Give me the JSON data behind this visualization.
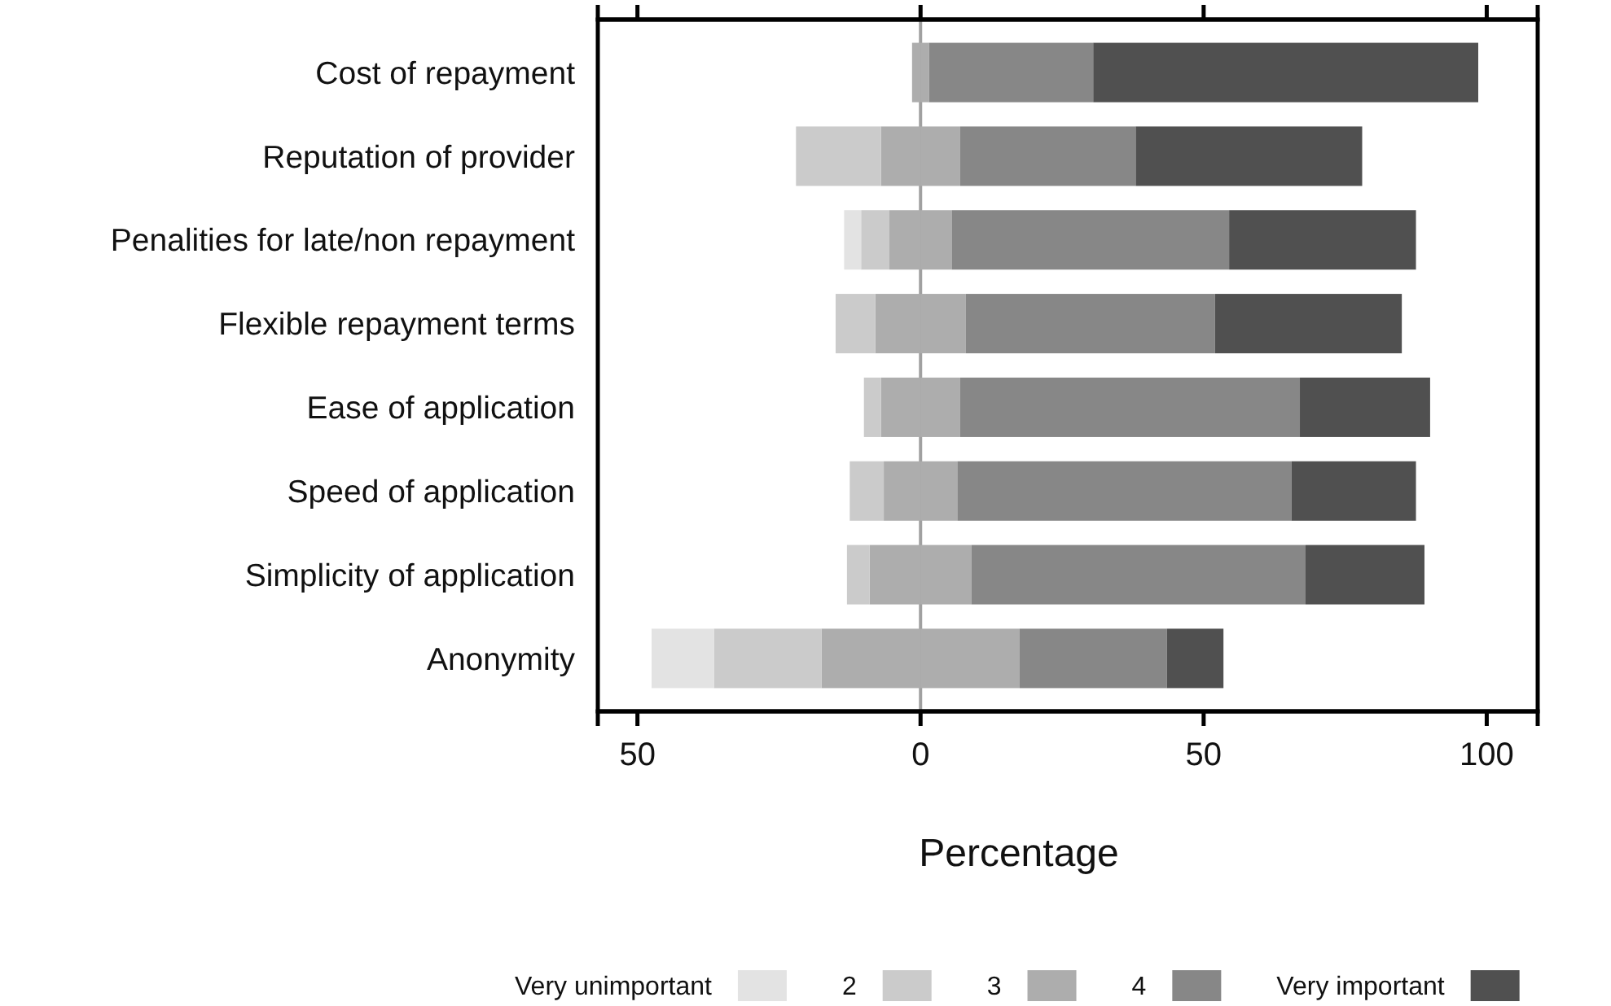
{
  "chart_data": {
    "type": "bar",
    "orientation": "horizontal",
    "stacked": true,
    "xlabel": "Percentage",
    "categories": [
      "Cost of repayment",
      "Reputation of provider",
      "Penalities for late/non repayment",
      "Flexible repayment terms",
      "Ease of application",
      "Speed of application",
      "Simplicity of application",
      "Anonymity"
    ],
    "series": [
      {
        "name": "3",
        "color": "#adadad",
        "values": [
          -1.5,
          -7,
          -5.5,
          -8,
          -7,
          -6.5,
          -9,
          -17.5
        ]
      },
      {
        "color": "#adadad",
        "values": [
          1.5,
          7,
          5.5,
          8,
          7,
          6.5,
          9,
          17.5
        ]
      },
      {
        "name": "2",
        "color": "#cbcbcb",
        "values": [
          0,
          -15,
          -5,
          -7,
          -3,
          -6,
          -4,
          -19
        ]
      },
      {
        "name": "Very unimportant",
        "color": "#e3e3e3",
        "values": [
          0,
          0,
          -3,
          0,
          0,
          0,
          0,
          -11
        ]
      },
      {
        "name": "4",
        "color": "#878787",
        "values": [
          29,
          31,
          49,
          44,
          60,
          59,
          59,
          26
        ]
      },
      {
        "name": "Very important",
        "color": "#505050",
        "values": [
          68,
          40,
          33,
          33,
          23,
          22,
          21,
          10
        ]
      }
    ],
    "xlim": [
      -57,
      109
    ],
    "xticks": [
      {
        "value": -50,
        "label": "50"
      },
      0,
      50,
      100
    ],
    "ref_lines": [
      {
        "axis": "x",
        "value": 0,
        "color": "#a0a0a0"
      }
    ],
    "grid": false,
    "legend": "bottom"
  }
}
